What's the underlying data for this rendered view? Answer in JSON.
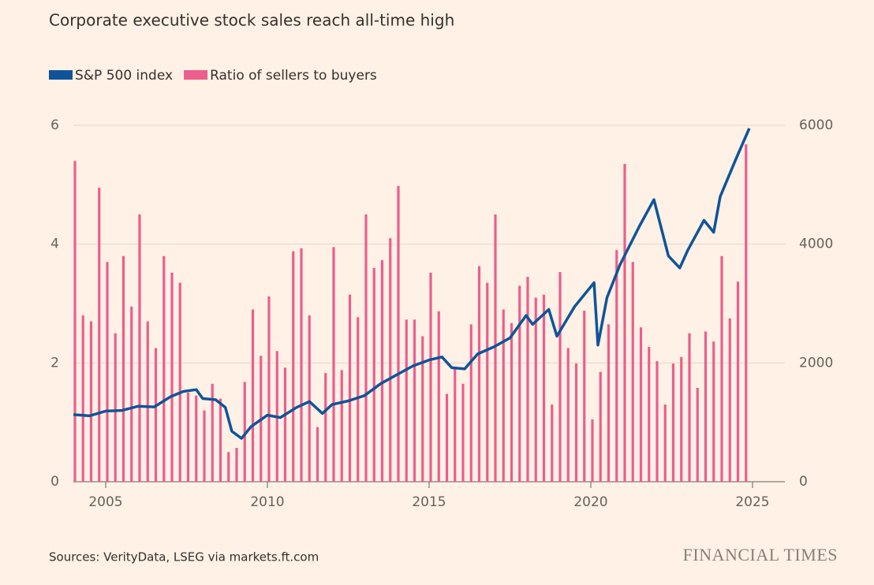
{
  "chart_data": {
    "type": "combo",
    "title": "Corporate executive stock sales reach all-time high",
    "source": "Sources: VerityData, LSEG via markets.ft.com",
    "brand": "FINANCIAL TIMES",
    "xlim": [
      2004,
      2026
    ],
    "xticks": [
      2005,
      2010,
      2015,
      2020,
      2025
    ],
    "ylim": [
      0,
      6
    ],
    "yticks": [
      0,
      2,
      4,
      6
    ],
    "y2lim": [
      0,
      6000
    ],
    "y2ticks": [
      0,
      2000,
      4000,
      6000
    ],
    "grid": true,
    "series": [
      {
        "name": "S&P 500 index",
        "type": "line",
        "axis": "y2",
        "color": "#0f5499",
        "x": [
          2004,
          2004.5,
          2005,
          2005.5,
          2006,
          2006.5,
          2007,
          2007.4,
          2007.8,
          2008,
          2008.4,
          2008.7,
          2008.9,
          2009.2,
          2009.5,
          2010,
          2010.4,
          2010.9,
          2011.3,
          2011.7,
          2012,
          2012.5,
          2013,
          2013.5,
          2014,
          2014.5,
          2015,
          2015.4,
          2015.7,
          2016.1,
          2016.5,
          2017,
          2017.5,
          2018,
          2018.2,
          2018.7,
          2018.95,
          2019.5,
          2020.1,
          2020.22,
          2020.5,
          2020.9,
          2021.5,
          2021.95,
          2022.4,
          2022.75,
          2023,
          2023.5,
          2023.8,
          2024,
          2024.5,
          2024.9
        ],
        "values": [
          1130,
          1110,
          1190,
          1200,
          1270,
          1260,
          1430,
          1520,
          1550,
          1400,
          1380,
          1250,
          850,
          730,
          930,
          1120,
          1080,
          1250,
          1350,
          1150,
          1300,
          1360,
          1450,
          1650,
          1800,
          1950,
          2050,
          2100,
          1920,
          1900,
          2150,
          2270,
          2420,
          2800,
          2650,
          2900,
          2450,
          2950,
          3350,
          2300,
          3100,
          3650,
          4300,
          4750,
          3800,
          3600,
          3900,
          4400,
          4200,
          4800,
          5450,
          5950
        ]
      },
      {
        "name": "Ratio of sellers to buyers",
        "type": "bar",
        "color": "#eb5e8d",
        "x": [
          2004,
          2004.25,
          2004.5,
          2004.75,
          2005,
          2005.25,
          2005.5,
          2005.75,
          2006,
          2006.25,
          2006.5,
          2006.75,
          2007,
          2007.25,
          2007.5,
          2007.75,
          2008,
          2008.25,
          2008.5,
          2008.75,
          2009,
          2009.25,
          2009.5,
          2009.75,
          2010,
          2010.25,
          2010.5,
          2010.75,
          2011,
          2011.25,
          2011.5,
          2011.75,
          2012,
          2012.25,
          2012.5,
          2012.75,
          2013,
          2013.25,
          2013.5,
          2013.75,
          2014,
          2014.25,
          2014.5,
          2014.75,
          2015,
          2015.25,
          2015.5,
          2015.75,
          2016,
          2016.25,
          2016.5,
          2016.75,
          2017,
          2017.25,
          2017.5,
          2017.75,
          2018,
          2018.25,
          2018.5,
          2018.75,
          2019,
          2019.25,
          2019.5,
          2019.75,
          2020,
          2020.25,
          2020.5,
          2020.75,
          2021,
          2021.25,
          2021.5,
          2021.75,
          2022,
          2022.25,
          2022.5,
          2022.75,
          2023,
          2023.25,
          2023.5,
          2023.75,
          2024,
          2024.25,
          2024.5,
          2024.75
        ],
        "values": [
          5.4,
          2.8,
          2.7,
          4.95,
          3.7,
          2.5,
          3.8,
          2.95,
          4.5,
          2.7,
          2.25,
          3.8,
          3.52,
          3.35,
          1.5,
          1.45,
          1.2,
          1.65,
          1.4,
          0.5,
          0.57,
          1.68,
          2.9,
          2.12,
          3.12,
          2.2,
          1.92,
          3.88,
          3.93,
          2.8,
          0.92,
          1.83,
          3.95,
          1.88,
          3.15,
          2.77,
          4.5,
          3.6,
          3.73,
          4.1,
          4.98,
          2.73,
          2.73,
          2.45,
          3.52,
          2.87,
          1.48,
          1.9,
          1.65,
          2.65,
          3.63,
          3.35,
          4.5,
          2.9,
          2.67,
          3.3,
          3.45,
          3.1,
          3.15,
          1.3,
          3.53,
          2.25,
          1.99,
          2.88,
          1.05,
          1.85,
          2.65,
          3.9,
          5.35,
          3.7,
          2.6,
          2.27,
          2.03,
          1.3,
          1.99,
          2.1,
          2.5,
          1.58,
          2.53,
          2.36,
          3.8,
          2.75,
          3.37,
          5.68
        ]
      }
    ]
  }
}
